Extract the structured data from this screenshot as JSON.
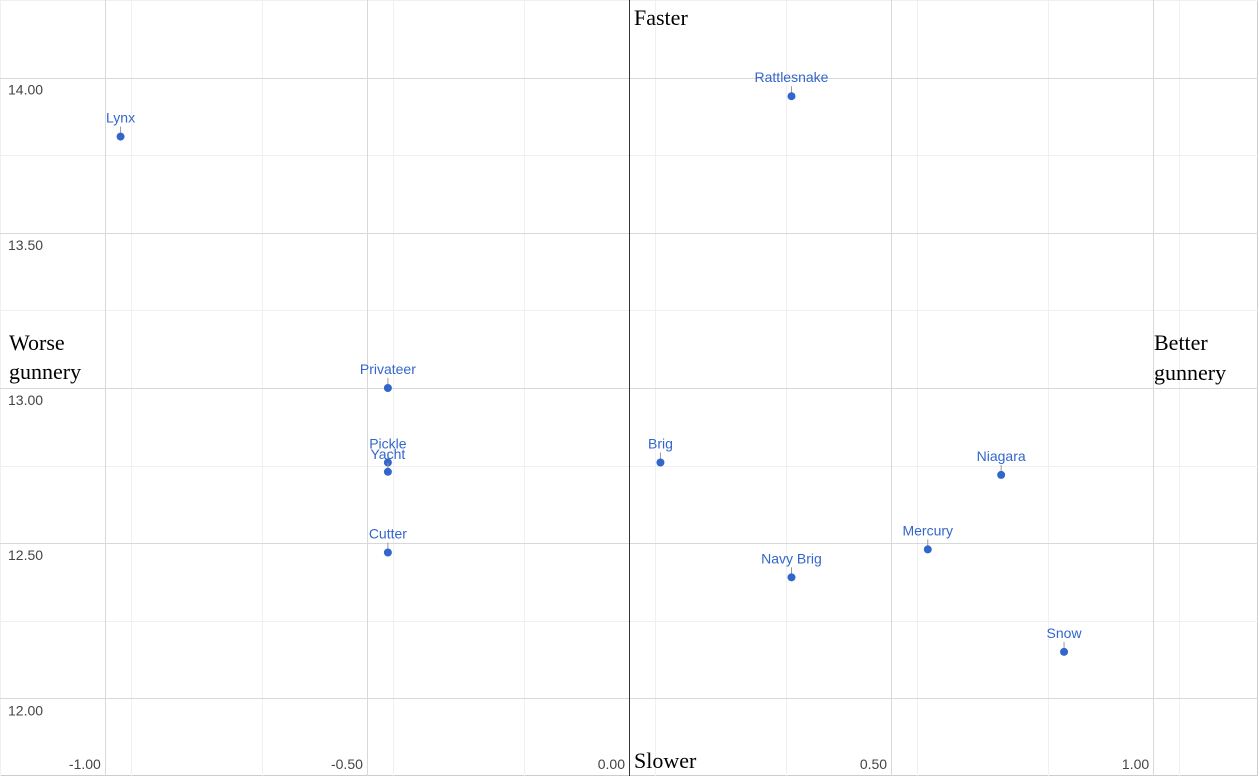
{
  "chart_data": {
    "type": "scatter",
    "title": "",
    "xlabel": "",
    "ylabel": "",
    "xlim": [
      -1.2,
      1.2
    ],
    "ylim": [
      11.75,
      14.25
    ],
    "x_ticks": [
      -1.0,
      -0.5,
      0.0,
      0.5,
      1.0
    ],
    "y_ticks": [
      12.0,
      12.5,
      13.0,
      13.5,
      14.0
    ],
    "x_tick_labels": [
      "-1.00",
      "-0.50",
      "0.00",
      "0.50",
      "1.00"
    ],
    "y_tick_labels": [
      "12.00",
      "12.50",
      "13.00",
      "13.50",
      "14.00"
    ],
    "grid": true,
    "point_color": "#3366cc",
    "points": [
      {
        "label": "Lynx",
        "x": -0.97,
        "y": 13.81
      },
      {
        "label": "Rattlesnake",
        "x": 0.31,
        "y": 13.94
      },
      {
        "label": "Privateer",
        "x": -0.46,
        "y": 13.0
      },
      {
        "label": "Pickle",
        "x": -0.46,
        "y": 12.76
      },
      {
        "label": "Yacht",
        "x": -0.46,
        "y": 12.73
      },
      {
        "label": "Cutter",
        "x": -0.46,
        "y": 12.47
      },
      {
        "label": "Brig",
        "x": 0.06,
        "y": 12.76
      },
      {
        "label": "Niagara",
        "x": 0.71,
        "y": 12.72
      },
      {
        "label": "Mercury",
        "x": 0.57,
        "y": 12.48
      },
      {
        "label": "Navy Brig",
        "x": 0.31,
        "y": 12.39
      },
      {
        "label": "Snow",
        "x": 0.83,
        "y": 12.15
      }
    ],
    "annotations": {
      "top": "Faster",
      "bottom": "Slower",
      "left": [
        "Worse",
        "gunnery"
      ],
      "right": [
        "Better",
        "gunnery"
      ]
    }
  }
}
